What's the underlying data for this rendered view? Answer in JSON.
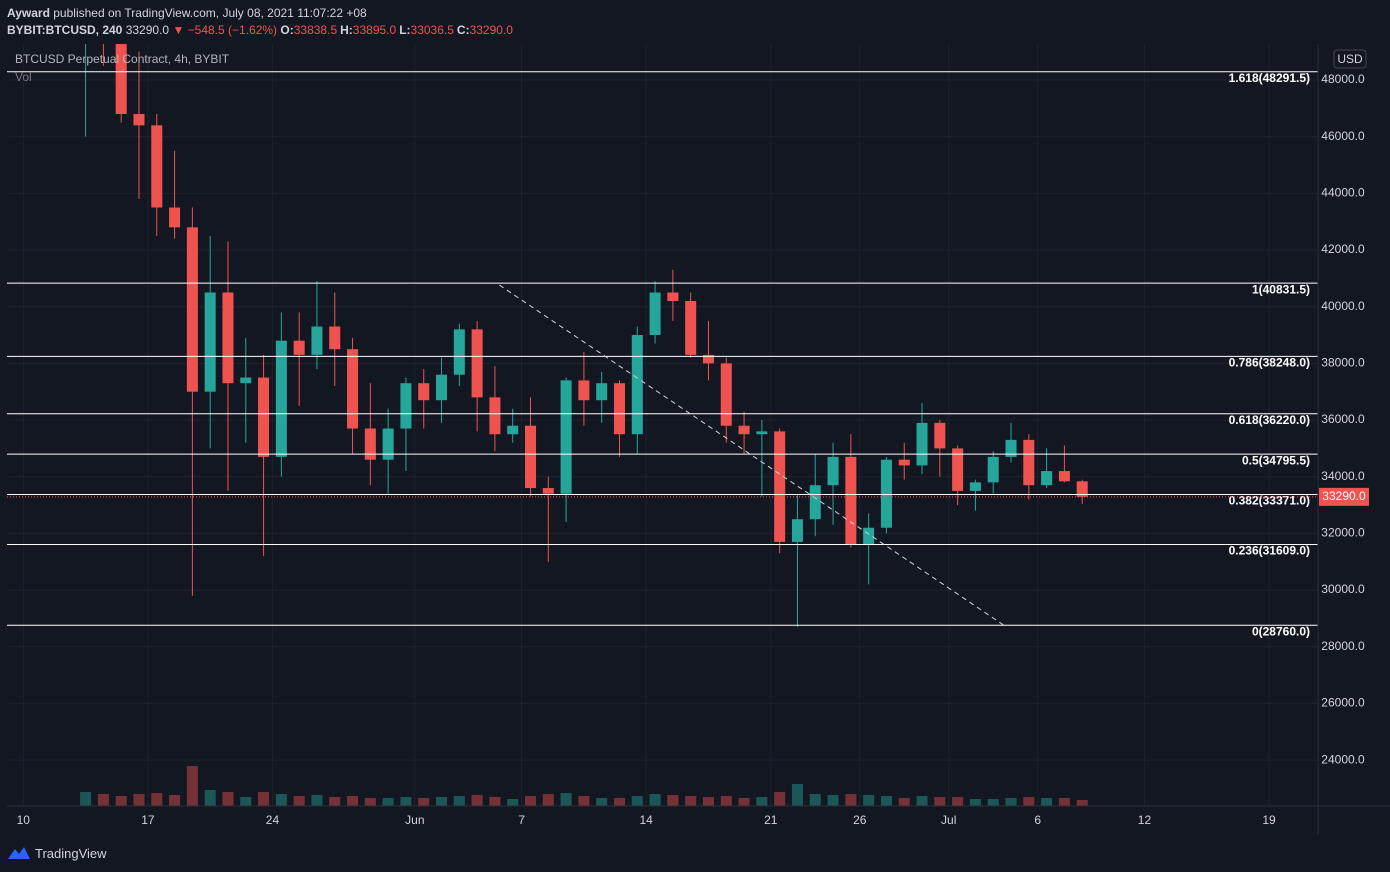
{
  "header": {
    "author": "Ayward",
    "published": "published on TradingView.com, July 08, 2021 11:07:22 +08",
    "symbol": "BYBIT:BTCUSD, 240",
    "last": "33290.0",
    "change": "▼ −548.5 (−1.62%)",
    "ohlc": [
      {
        "key": "O:",
        "value": "33838.5"
      },
      {
        "key": "H:",
        "value": "33895.0"
      },
      {
        "key": "L:",
        "value": "33036.5"
      },
      {
        "key": "C:",
        "value": "33290.0"
      }
    ]
  },
  "footer": "TradingView",
  "chart_data": {
    "type": "candlestick",
    "title": "BTCUSD Perpetual Contract, 4h, BYBIT",
    "volume_label": "Vol",
    "unit": "USD",
    "up_color": "#26a69a",
    "down_color": "#ef5350",
    "x": [
      "2021-05-13",
      "2021-05-14",
      "2021-05-15",
      "2021-05-16",
      "2021-05-17",
      "2021-05-18",
      "2021-05-19",
      "2021-05-20",
      "2021-05-21",
      "2021-05-22",
      "2021-05-23",
      "2021-05-24",
      "2021-05-25",
      "2021-05-26",
      "2021-05-27",
      "2021-05-28",
      "2021-05-29",
      "2021-05-30",
      "2021-05-31",
      "2021-06-01",
      "2021-06-02",
      "2021-06-03",
      "2021-06-04",
      "2021-06-05",
      "2021-06-06",
      "2021-06-07",
      "2021-06-08",
      "2021-06-09",
      "2021-06-10",
      "2021-06-11",
      "2021-06-12",
      "2021-06-13",
      "2021-06-14",
      "2021-06-15",
      "2021-06-16",
      "2021-06-17",
      "2021-06-18",
      "2021-06-19",
      "2021-06-20",
      "2021-06-21",
      "2021-06-22",
      "2021-06-23",
      "2021-06-24",
      "2021-06-25",
      "2021-06-26",
      "2021-06-27",
      "2021-06-28",
      "2021-06-29",
      "2021-06-30",
      "2021-07-01",
      "2021-07-02",
      "2021-07-03",
      "2021-07-04",
      "2021-07-05",
      "2021-07-06",
      "2021-07-07",
      "2021-07-08"
    ],
    "open": [
      49500,
      49800,
      49700,
      46800,
      46400,
      43500,
      42800,
      37000,
      40500,
      37300,
      37500,
      34700,
      38800,
      38300,
      39300,
      38500,
      35700,
      34600,
      35700,
      37300,
      36700,
      37600,
      39200,
      36800,
      35500,
      35800,
      33600,
      33400,
      37400,
      36700,
      37300,
      35500,
      39000,
      40500,
      40200,
      38300,
      38000,
      35800,
      35500,
      35600,
      31700,
      32500,
      33700,
      34700,
      31600,
      32200,
      34600,
      34400,
      35900,
      35000,
      33500,
      33800,
      34700,
      35300,
      33700,
      34200,
      33838.5
    ],
    "high": [
      51000,
      51500,
      50500,
      49000,
      46800,
      45500,
      43500,
      42500,
      42300,
      38900,
      38300,
      39800,
      39800,
      40900,
      40500,
      38900,
      37300,
      36400,
      37500,
      37800,
      38200,
      39400,
      39500,
      37900,
      36400,
      36800,
      34000,
      37500,
      38400,
      37700,
      37400,
      39300,
      40900,
      41300,
      40500,
      39500,
      38200,
      36300,
      36000,
      35700,
      33400,
      34800,
      35200,
      35500,
      32700,
      34700,
      35200,
      36600,
      36000,
      35100,
      33900,
      34900,
      35900,
      35500,
      35000,
      35100,
      33895
    ],
    "low": [
      46000,
      48500,
      46500,
      43800,
      42500,
      42400,
      29800,
      35000,
      33500,
      35200,
      31200,
      34000,
      36500,
      37800,
      37200,
      34800,
      33700,
      33400,
      34200,
      35700,
      35900,
      37200,
      35600,
      34900,
      35200,
      33300,
      31000,
      32400,
      35800,
      35900,
      34700,
      34800,
      38700,
      39500,
      38200,
      37400,
      35200,
      34800,
      33300,
      31300,
      28700,
      31900,
      32300,
      31500,
      30200,
      32000,
      33900,
      34100,
      34000,
      33000,
      32800,
      33400,
      34500,
      33200,
      33600,
      33800,
      33036.5
    ],
    "close": [
      49800,
      49700,
      46800,
      46400,
      43500,
      42800,
      37000,
      40500,
      37300,
      37500,
      34700,
      38800,
      38300,
      39300,
      38500,
      35700,
      34600,
      35700,
      37300,
      36700,
      37600,
      39200,
      36800,
      35500,
      35800,
      33600,
      33400,
      37400,
      36700,
      37300,
      35500,
      39000,
      40500,
      40200,
      38300,
      38000,
      35800,
      35500,
      35600,
      31700,
      32500,
      33700,
      34700,
      31600,
      32200,
      34600,
      34400,
      35900,
      35000,
      33500,
      33800,
      34700,
      35300,
      33700,
      34200,
      33838.5,
      33290
    ],
    "volume": [
      14,
      12,
      10,
      12,
      13,
      11,
      40,
      16,
      14,
      9,
      14,
      12,
      10,
      11,
      9,
      10,
      8,
      8,
      9,
      8,
      9,
      10,
      11,
      9,
      7,
      10,
      12,
      13,
      10,
      8,
      8,
      10,
      12,
      11,
      10,
      9,
      10,
      8,
      9,
      14,
      22,
      12,
      11,
      12,
      11,
      10,
      8,
      10,
      9,
      9,
      7,
      7,
      8,
      9,
      8,
      8,
      6
    ],
    "xlim": [
      "2021-05-09T02:00:00Z",
      "2021-07-21T18:00:00Z"
    ],
    "xticks": [
      {
        "value": "2021-05-10",
        "label": "10"
      },
      {
        "value": "2021-05-17",
        "label": "17"
      },
      {
        "value": "2021-05-24",
        "label": "24"
      },
      {
        "value": "2021-06-01",
        "label": "Jun"
      },
      {
        "value": "2021-06-07",
        "label": "7"
      },
      {
        "value": "2021-06-14",
        "label": "14"
      },
      {
        "value": "2021-06-21",
        "label": "21"
      },
      {
        "value": "2021-06-26",
        "label": "26"
      },
      {
        "value": "2021-07-01",
        "label": "Jul"
      },
      {
        "value": "2021-07-06",
        "label": "6"
      },
      {
        "value": "2021-07-12",
        "label": "12"
      },
      {
        "value": "2021-07-19",
        "label": "19"
      }
    ],
    "ylim": [
      22380,
      49270
    ],
    "yticks": [
      {
        "value": 24000,
        "label": "24000.0"
      },
      {
        "value": 26000,
        "label": "26000.0"
      },
      {
        "value": 28000,
        "label": "28000.0"
      },
      {
        "value": 30000,
        "label": "30000.0"
      },
      {
        "value": 32000,
        "label": "32000.0"
      },
      {
        "value": 34000,
        "label": "34000.0"
      },
      {
        "value": 36000,
        "label": "36000.0"
      },
      {
        "value": 38000,
        "label": "38000.0"
      },
      {
        "value": 40000,
        "label": "40000.0"
      },
      {
        "value": 42000,
        "label": "42000.0"
      },
      {
        "value": 44000,
        "label": "44000.0"
      },
      {
        "value": 46000,
        "label": "46000.0"
      },
      {
        "value": 48000,
        "label": "48000.0"
      }
    ],
    "grid": true,
    "last_price": {
      "value": 33290,
      "label": "33290.0"
    },
    "fib_levels": [
      {
        "value": 48291.5,
        "label": "1.618(48291.5)"
      },
      {
        "value": 40831.5,
        "label": "1(40831.5)"
      },
      {
        "value": 38248,
        "label": "0.786(38248.0)"
      },
      {
        "value": 36220,
        "label": "0.618(36220.0)"
      },
      {
        "value": 34795.5,
        "label": "0.5(34795.5)"
      },
      {
        "value": 33371,
        "label": "0.382(33371.0)"
      },
      {
        "value": 31609,
        "label": "0.236(31609.0)"
      },
      {
        "value": 28760,
        "label": "0(28760.0)"
      }
    ],
    "trendline": {
      "x": [
        "2021-06-05T18:00:00Z",
        "2021-07-04T02:00:00Z"
      ],
      "y": [
        40765,
        28765
      ]
    }
  }
}
